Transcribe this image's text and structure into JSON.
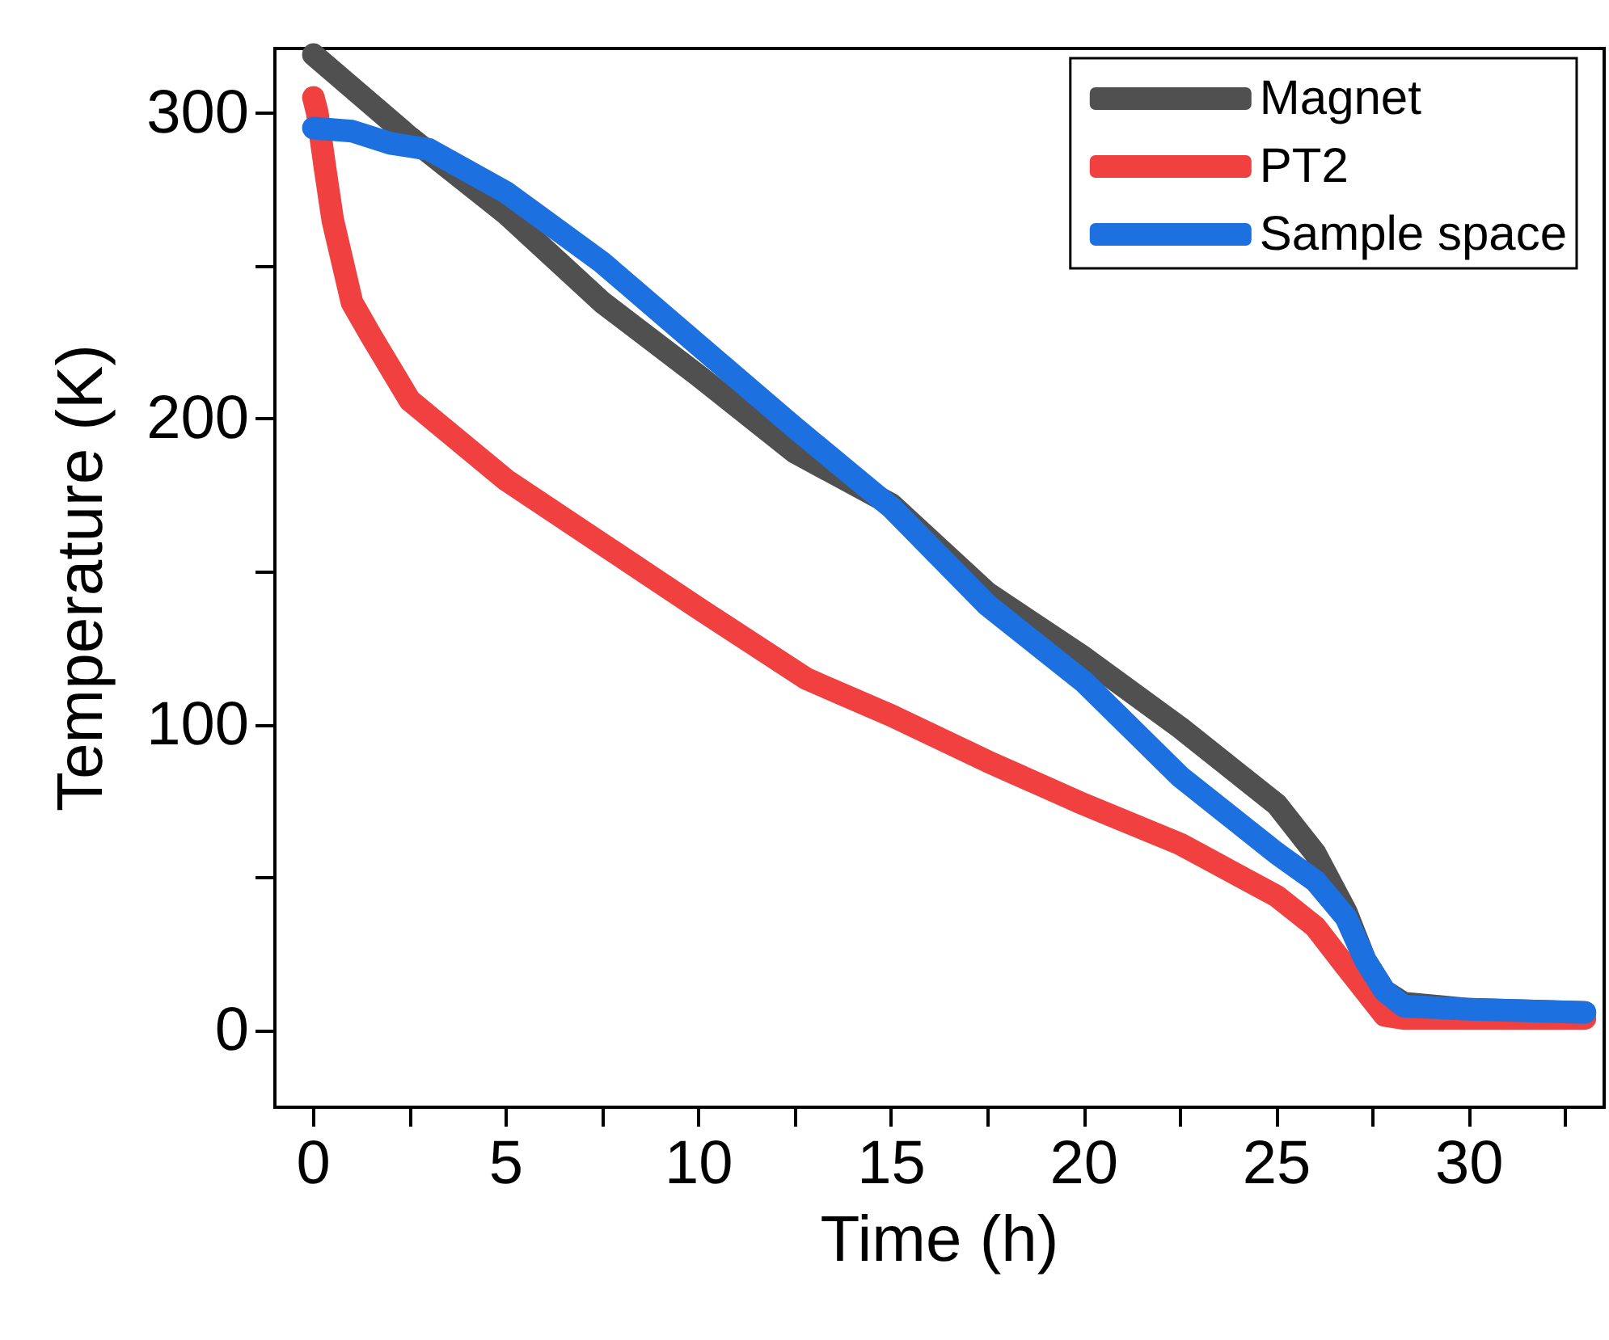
{
  "chart_data": {
    "type": "line",
    "xlabel": "Time (h)",
    "ylabel": "Temperature (K)",
    "xlim": [
      -1,
      33.5
    ],
    "ylim": [
      -25,
      321
    ],
    "xticks": [
      0,
      {
        "value": 2.5,
        "label": null
      },
      5,
      {
        "value": 7.5,
        "label": null
      },
      10,
      {
        "value": 12.5,
        "label": null
      },
      15,
      {
        "value": 17.5,
        "label": null
      },
      20,
      {
        "value": 22.5,
        "label": null
      },
      25,
      {
        "value": 27.5,
        "label": null
      },
      30,
      {
        "value": 32.5,
        "label": null
      }
    ],
    "yticks": [
      0,
      {
        "value": 50,
        "label": null
      },
      100,
      {
        "value": 150,
        "label": null
      },
      200,
      {
        "value": 250,
        "label": null
      },
      300
    ],
    "grid": false,
    "legend": "top right",
    "marker": "none",
    "line_style": "solid",
    "series": [
      {
        "name": "Magnet",
        "color": "#505050",
        "x": [
          0,
          2.5,
          5,
          7.5,
          10,
          12.5,
          15,
          17.5,
          20,
          22.5,
          25,
          26,
          26.8,
          27.3,
          27.8,
          28.3,
          30,
          33
        ],
        "values": [
          319,
          292,
          267,
          238,
          214,
          189,
          172,
          143,
          122,
          99,
          74,
          58,
          39,
          23,
          13,
          9,
          7,
          6
        ]
      },
      {
        "name": "PT2",
        "color": "#f04040",
        "x": [
          0,
          0.1,
          0.3,
          0.5,
          1,
          1.5,
          2.5,
          5,
          7.5,
          10,
          12.8,
          15,
          17.5,
          20,
          22.5,
          25,
          26,
          26.8,
          27.3,
          27.8,
          28.3,
          30,
          33
        ],
        "values": [
          305,
          300,
          282,
          265,
          238,
          227,
          206,
          180,
          159,
          138,
          115,
          103,
          88,
          74,
          61,
          44,
          34,
          21,
          13,
          5,
          4,
          4,
          4
        ]
      },
      {
        "name": "Sample space",
        "color": "#1c70e0",
        "x": [
          0,
          1,
          2,
          3,
          5,
          7.5,
          10,
          12.5,
          15,
          17.5,
          20,
          22.5,
          25,
          26,
          26.8,
          27.3,
          27.8,
          28.3,
          30,
          33
        ],
        "values": [
          295,
          294,
          290,
          288,
          274,
          251,
          224,
          197,
          171,
          139,
          114,
          83,
          58,
          49,
          37,
          23,
          13,
          8,
          7,
          6
        ]
      }
    ]
  }
}
